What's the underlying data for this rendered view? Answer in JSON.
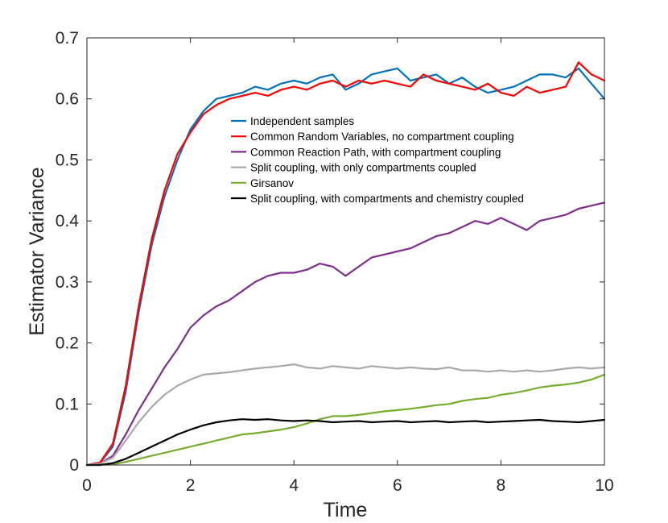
{
  "chart_data": {
    "type": "line",
    "title": "",
    "xlabel": "Time",
    "ylabel": "Estimator Variance",
    "xlim": [
      0,
      10
    ],
    "ylim": [
      0,
      0.7
    ],
    "xticks": [
      0,
      2,
      4,
      6,
      8,
      10
    ],
    "xtick_labels": [
      "0",
      "2",
      "4",
      "6",
      "8",
      "10"
    ],
    "yticks": [
      0,
      0.1,
      0.2,
      0.3,
      0.4,
      0.5,
      0.6,
      0.7
    ],
    "ytick_labels": [
      "0",
      "0.1",
      "0.2",
      "0.3",
      "0.4",
      "0.5",
      "0.6",
      "0.7"
    ],
    "grid": false,
    "legend_position": "top-right",
    "x": [
      0,
      0.25,
      0.5,
      0.75,
      1,
      1.25,
      1.5,
      1.75,
      2,
      2.25,
      2.5,
      2.75,
      3,
      3.25,
      3.5,
      3.75,
      4,
      4.25,
      4.5,
      4.75,
      5,
      5.25,
      5.5,
      5.75,
      6,
      6.25,
      6.5,
      6.75,
      7,
      7.25,
      7.5,
      7.75,
      8,
      8.25,
      8.5,
      8.75,
      9,
      9.25,
      9.5,
      9.75,
      10
    ],
    "series": [
      {
        "name": "Independent samples",
        "color": "#0072BD",
        "values": [
          0,
          0.003,
          0.03,
          0.12,
          0.25,
          0.36,
          0.44,
          0.5,
          0.55,
          0.58,
          0.6,
          0.605,
          0.61,
          0.62,
          0.615,
          0.625,
          0.63,
          0.625,
          0.635,
          0.64,
          0.615,
          0.625,
          0.64,
          0.645,
          0.65,
          0.63,
          0.635,
          0.64,
          0.625,
          0.635,
          0.62,
          0.61,
          0.615,
          0.62,
          0.63,
          0.64,
          0.64,
          0.635,
          0.65,
          0.625,
          0.6
        ]
      },
      {
        "name": "Common Random Variables, no compartment coupling",
        "color": "#FF0000",
        "values": [
          0,
          0.004,
          0.035,
          0.13,
          0.26,
          0.37,
          0.45,
          0.51,
          0.545,
          0.575,
          0.59,
          0.6,
          0.605,
          0.61,
          0.605,
          0.615,
          0.62,
          0.615,
          0.625,
          0.63,
          0.62,
          0.63,
          0.625,
          0.63,
          0.625,
          0.62,
          0.64,
          0.63,
          0.625,
          0.62,
          0.615,
          0.625,
          0.61,
          0.605,
          0.62,
          0.61,
          0.615,
          0.62,
          0.66,
          0.64,
          0.63
        ]
      },
      {
        "name": "Common Reaction Path, with compartment coupling",
        "color": "#7E2F8E",
        "values": [
          0,
          0.002,
          0.015,
          0.05,
          0.09,
          0.125,
          0.16,
          0.19,
          0.225,
          0.245,
          0.26,
          0.27,
          0.285,
          0.3,
          0.31,
          0.315,
          0.315,
          0.32,
          0.33,
          0.325,
          0.31,
          0.325,
          0.34,
          0.345,
          0.35,
          0.355,
          0.365,
          0.375,
          0.38,
          0.39,
          0.4,
          0.395,
          0.405,
          0.395,
          0.385,
          0.4,
          0.405,
          0.41,
          0.42,
          0.425,
          0.43
        ]
      },
      {
        "name": "Split coupling, with only compartments coupled",
        "color": "#A9A9A9",
        "values": [
          0,
          0.002,
          0.012,
          0.04,
          0.07,
          0.095,
          0.115,
          0.13,
          0.14,
          0.148,
          0.15,
          0.152,
          0.155,
          0.158,
          0.16,
          0.162,
          0.165,
          0.16,
          0.158,
          0.162,
          0.16,
          0.158,
          0.162,
          0.16,
          0.158,
          0.16,
          0.158,
          0.157,
          0.16,
          0.155,
          0.155,
          0.153,
          0.155,
          0.153,
          0.155,
          0.153,
          0.155,
          0.158,
          0.16,
          0.158,
          0.16
        ]
      },
      {
        "name": "Girsanov",
        "color": "#77AC30",
        "values": [
          0,
          0,
          0.001,
          0.005,
          0.01,
          0.015,
          0.02,
          0.025,
          0.03,
          0.035,
          0.04,
          0.045,
          0.05,
          0.052,
          0.055,
          0.058,
          0.062,
          0.068,
          0.075,
          0.08,
          0.08,
          0.082,
          0.085,
          0.088,
          0.09,
          0.092,
          0.095,
          0.098,
          0.1,
          0.105,
          0.108,
          0.11,
          0.115,
          0.118,
          0.122,
          0.127,
          0.13,
          0.132,
          0.135,
          0.14,
          0.148
        ]
      },
      {
        "name": "Split coupling, with compartments and chemistry coupled",
        "color": "#000000",
        "values": [
          0,
          0,
          0.003,
          0.01,
          0.02,
          0.03,
          0.04,
          0.05,
          0.058,
          0.065,
          0.07,
          0.073,
          0.075,
          0.074,
          0.075,
          0.073,
          0.072,
          0.073,
          0.072,
          0.07,
          0.071,
          0.072,
          0.07,
          0.071,
          0.072,
          0.07,
          0.071,
          0.072,
          0.07,
          0.071,
          0.072,
          0.07,
          0.071,
          0.072,
          0.073,
          0.074,
          0.072,
          0.071,
          0.07,
          0.072,
          0.074
        ]
      }
    ]
  }
}
